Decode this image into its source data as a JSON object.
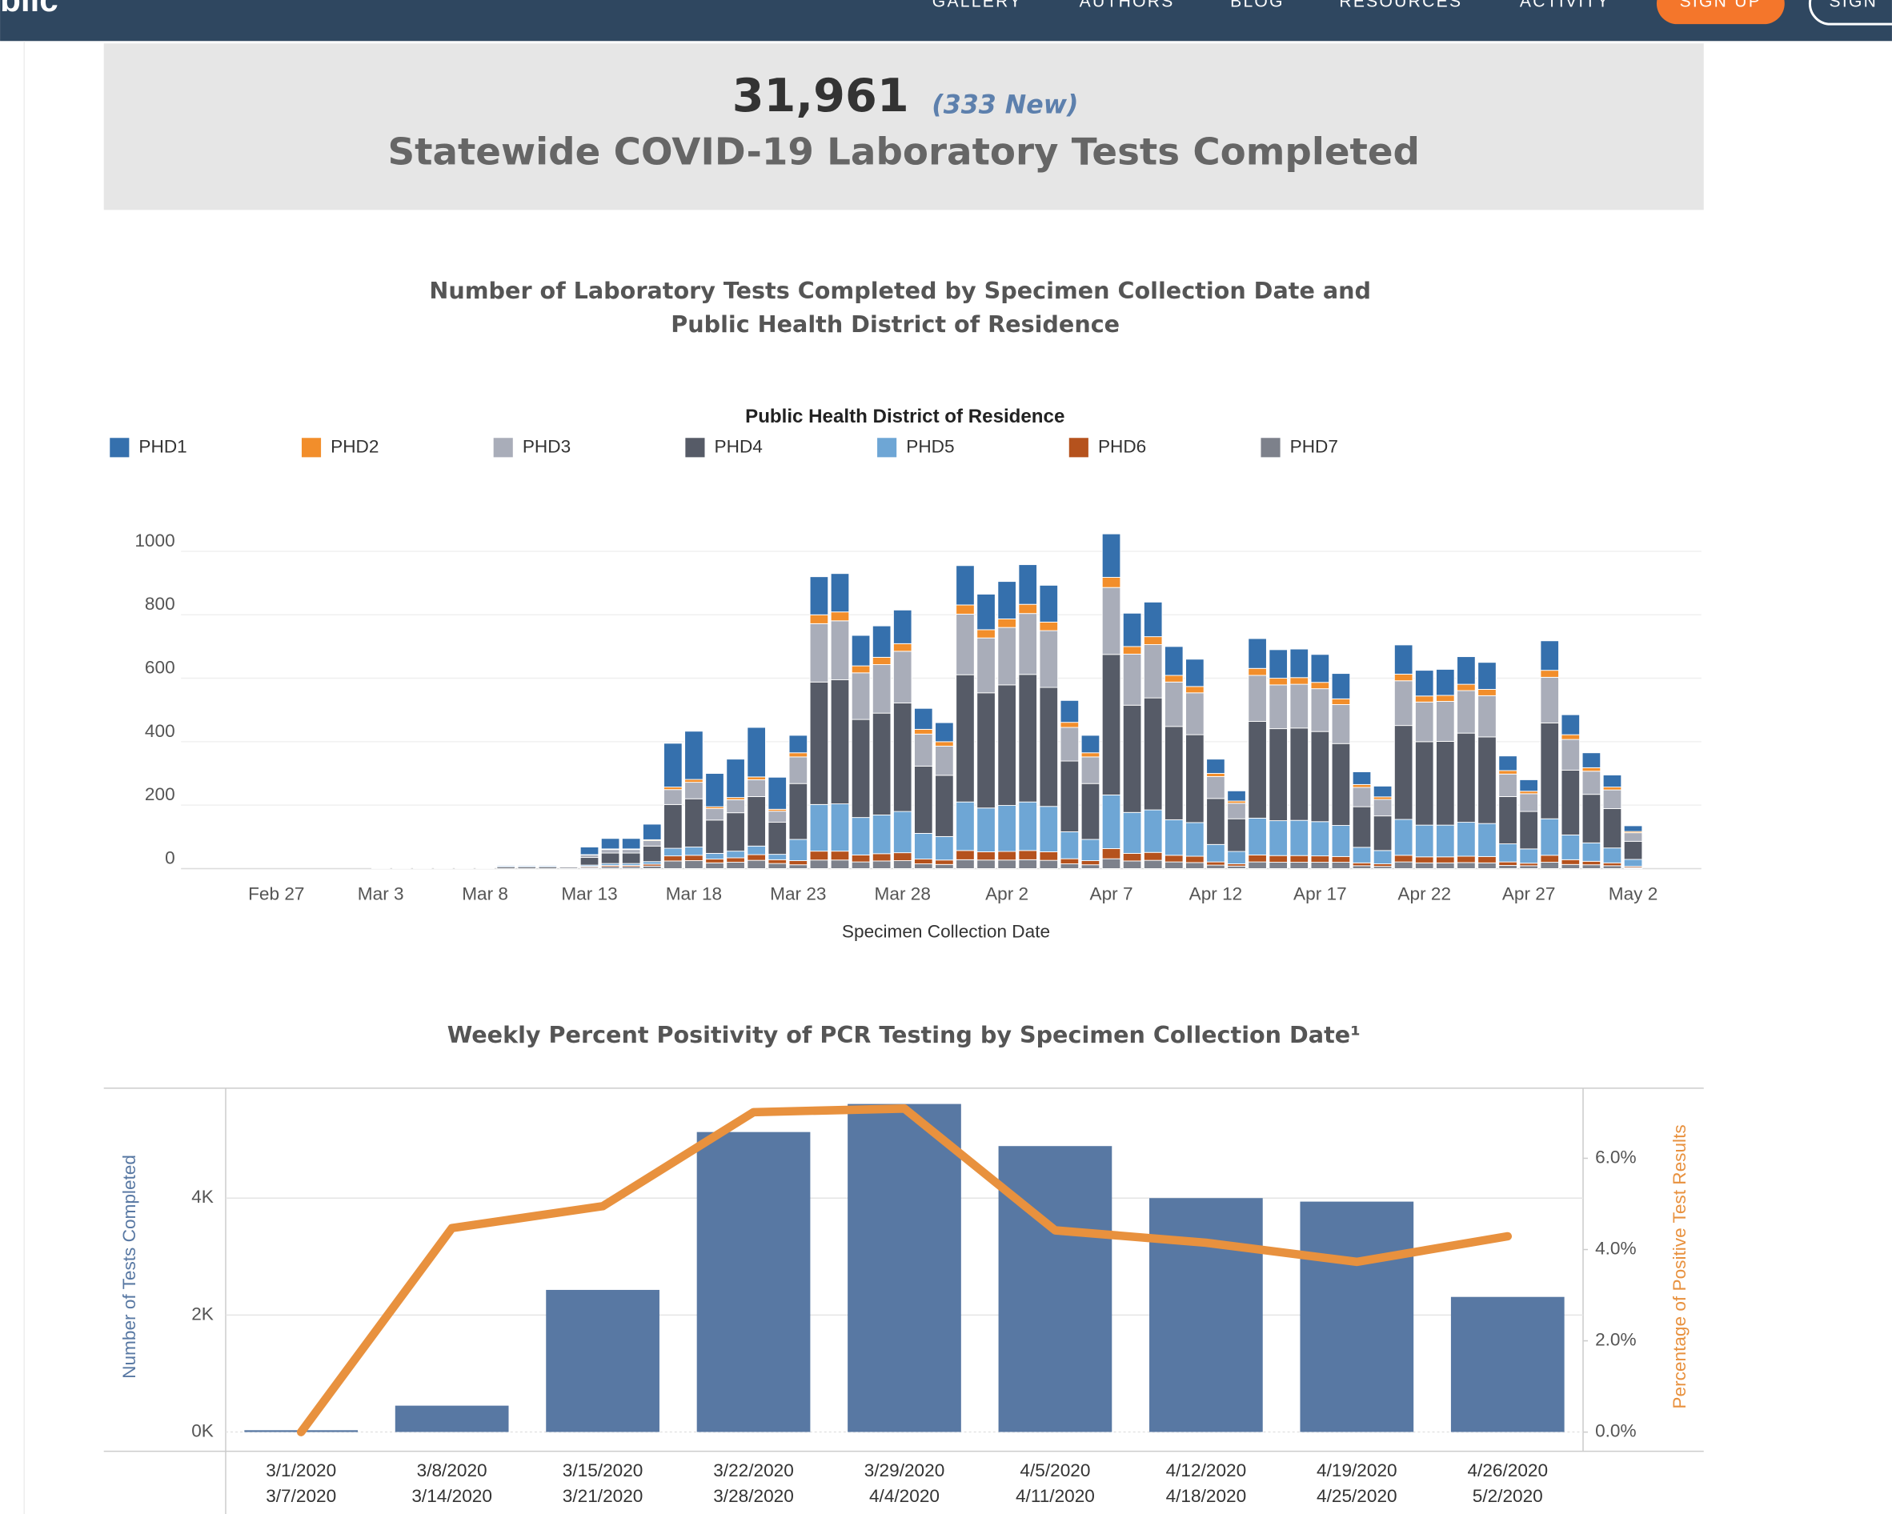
{
  "nav": {
    "logo": "blic",
    "items": [
      "GALLERY",
      "AUTHORS",
      "BLOG",
      "RESOURCES",
      "ACTIVITY"
    ],
    "signup": "SIGN UP",
    "signin": "SIGN"
  },
  "summary": {
    "total": "31,961",
    "new": "(333 New)",
    "label": "Statewide COVID-19 Laboratory Tests Completed"
  },
  "chart_data": [
    {
      "type": "stacked_bar",
      "title": [
        "Number of Laboratory Tests Completed by Specimen Collection Date and",
        "Public Health District of Residence"
      ],
      "legend_title": "Public Health District of Residence",
      "x_label": "Specimen Collection Date",
      "categories": [
        "Feb 27",
        null,
        null,
        null,
        null,
        "Mar 3",
        null,
        null,
        null,
        null,
        "Mar 8",
        null,
        null,
        null,
        null,
        "Mar 13",
        null,
        null,
        null,
        null,
        "Mar 18",
        null,
        null,
        null,
        null,
        "Mar 23",
        null,
        null,
        null,
        null,
        "Mar 28",
        null,
        null,
        null,
        null,
        "Apr 2",
        null,
        null,
        null,
        null,
        "Apr 7",
        null,
        null,
        null,
        null,
        "Apr 12",
        null,
        null,
        null,
        null,
        "Apr 17",
        null,
        null,
        null,
        null,
        "Apr 22",
        null,
        null,
        null,
        null,
        "Apr 27",
        null,
        null,
        null,
        null,
        "May 2"
      ],
      "ylim": [
        0,
        1070
      ],
      "yticks": [
        0,
        200,
        400,
        600,
        800,
        1000
      ],
      "grid": true,
      "series": [
        {
          "name": "PHD1",
          "color": "#3570ad",
          "values": [
            0,
            0,
            0,
            0,
            0,
            0,
            0,
            0,
            0,
            0,
            0,
            3,
            3,
            3,
            2,
            24,
            33,
            33,
            49,
            138,
            152,
            105,
            121,
            156,
            101,
            55,
            120,
            121,
            96,
            99,
            106,
            66,
            60,
            124,
            112,
            118,
            125,
            116,
            69,
            55,
            137,
            105,
            109,
            91,
            86,
            45,
            32,
            94,
            90,
            90,
            88,
            80,
            40,
            34,
            92,
            81,
            82,
            87,
            85,
            46,
            36,
            93,
            63,
            47,
            38,
            18
          ]
        },
        {
          "name": "PHD2",
          "color": "#f28e2b",
          "values": [
            0,
            0,
            0,
            0,
            0,
            0,
            0,
            0,
            0,
            0,
            0,
            0,
            0,
            0,
            0,
            1,
            2,
            2,
            3,
            8,
            9,
            6,
            7,
            9,
            6,
            13,
            28,
            28,
            22,
            23,
            24,
            15,
            14,
            29,
            26,
            27,
            29,
            27,
            16,
            13,
            32,
            24,
            25,
            21,
            20,
            10,
            7,
            22,
            21,
            21,
            20,
            18,
            9,
            8,
            21,
            19,
            19,
            20,
            20,
            11,
            8,
            22,
            15,
            11,
            9,
            4
          ]
        },
        {
          "name": "PHD3",
          "color": "#a9adb9",
          "values": [
            0,
            0,
            0,
            0,
            0,
            0,
            0,
            0,
            0,
            0,
            0,
            0,
            0,
            0,
            0,
            8,
            11,
            11,
            17,
            47,
            52,
            36,
            41,
            53,
            35,
            84,
            184,
            186,
            147,
            153,
            163,
            101,
            92,
            191,
            173,
            181,
            192,
            179,
            106,
            84,
            211,
            161,
            168,
            140,
            132,
            69,
            49,
            145,
            138,
            138,
            135,
            123,
            61,
            52,
            141,
            125,
            126,
            134,
            130,
            71,
            56,
            144,
            97,
            73,
            59,
            27
          ]
        },
        {
          "name": "PHD4",
          "color": "#565b67",
          "values": [
            0,
            0,
            0,
            0,
            0,
            2,
            2,
            2,
            2,
            2,
            2,
            5,
            5,
            5,
            4,
            24,
            33,
            33,
            49,
            138,
            152,
            105,
            121,
            156,
            101,
            176,
            386,
            391,
            309,
            321,
            342,
            212,
            193,
            401,
            363,
            380,
            402,
            375,
            223,
            176,
            443,
            338,
            353,
            294,
            277,
            145,
            103,
            305,
            290,
            291,
            284,
            258,
            128,
            109,
            296,
            263,
            264,
            281,
            273,
            149,
            118,
            302,
            204,
            153,
            124,
            57
          ]
        },
        {
          "name": "PHD5",
          "color": "#6ea6d5",
          "values": [
            0,
            0,
            0,
            0,
            0,
            0,
            0,
            0,
            0,
            0,
            0,
            0,
            0,
            0,
            0,
            4,
            6,
            6,
            8,
            24,
            26,
            18,
            21,
            27,
            17,
            67,
            147,
            149,
            118,
            122,
            130,
            81,
            74,
            153,
            138,
            145,
            153,
            143,
            85,
            67,
            169,
            129,
            134,
            112,
            106,
            55,
            39,
            116,
            110,
            111,
            108,
            98,
            49,
            42,
            113,
            100,
            100,
            107,
            104,
            57,
            45,
            115,
            78,
            58,
            47,
            22
          ]
        },
        {
          "name": "PHD6",
          "color": "#b5521d",
          "values": [
            0,
            0,
            0,
            0,
            0,
            0,
            0,
            0,
            0,
            0,
            0,
            0,
            0,
            0,
            0,
            3,
            4,
            4,
            6,
            16,
            17,
            12,
            14,
            18,
            12,
            13,
            28,
            28,
            22,
            23,
            25,
            15,
            14,
            29,
            26,
            27,
            29,
            27,
            16,
            13,
            32,
            24,
            25,
            21,
            20,
            10,
            7,
            22,
            21,
            21,
            20,
            18,
            9,
            8,
            21,
            19,
            19,
            20,
            20,
            11,
            8,
            22,
            15,
            11,
            9,
            4
          ]
        },
        {
          "name": "PHD7",
          "color": "#7d818b",
          "values": [
            0,
            0,
            0,
            0,
            0,
            0,
            0,
            0,
            0,
            0,
            0,
            0,
            0,
            0,
            0,
            4,
            6,
            6,
            8,
            24,
            25,
            18,
            20,
            26,
            16,
            12,
            27,
            27,
            21,
            24,
            25,
            15,
            13,
            28,
            27,
            27,
            28,
            26,
            15,
            12,
            31,
            24,
            26,
            21,
            19,
            11,
            8,
            21,
            20,
            20,
            20,
            20,
            9,
            7,
            21,
            18,
            18,
            19,
            18,
            10,
            9,
            20,
            13,
            12,
            9,
            3
          ]
        }
      ]
    },
    {
      "type": "combo",
      "title": "Weekly Percent Positivity of PCR Testing by Specimen Collection Date¹",
      "y_label": "Number of Tests Completed",
      "y2_label": "Percentage of Positive Test Results",
      "categories": [
        [
          "3/1/2020",
          "3/7/2020"
        ],
        [
          "3/8/2020",
          "3/14/2020"
        ],
        [
          "3/15/2020",
          "3/21/2020"
        ],
        [
          "3/22/2020",
          "3/28/2020"
        ],
        [
          "3/29/2020",
          "4/4/2020"
        ],
        [
          "4/5/2020",
          "4/11/2020"
        ],
        [
          "4/12/2020",
          "4/18/2020"
        ],
        [
          "4/19/2020",
          "4/25/2020"
        ],
        [
          "4/26/2020",
          "5/2/2020"
        ]
      ],
      "ylim": [
        -330,
        5860
      ],
      "yticks": [
        {
          "value": 0,
          "label": "0K"
        },
        {
          "value": 2000,
          "label": "2K"
        },
        {
          "value": 4000,
          "label": "4K"
        }
      ],
      "y2lim": [
        -0.42,
        7.51
      ],
      "y2ticks": [
        {
          "value": 0,
          "label": "0.0%"
        },
        {
          "value": 2,
          "label": "2.0%"
        },
        {
          "value": 4,
          "label": "4.0%"
        },
        {
          "value": 6,
          "label": "6.0%"
        }
      ],
      "grid": true,
      "series": [
        {
          "type": "bar",
          "color": "#5878a3",
          "values": [
            30,
            450,
            2430,
            5130,
            5610,
            4890,
            4000,
            3940,
            2310
          ]
        },
        {
          "type": "line",
          "axis": "y2",
          "color": "#e8913e",
          "values": [
            0.0,
            4.47,
            4.95,
            7.01,
            7.09,
            4.42,
            4.15,
            3.73,
            4.29
          ]
        }
      ]
    }
  ]
}
